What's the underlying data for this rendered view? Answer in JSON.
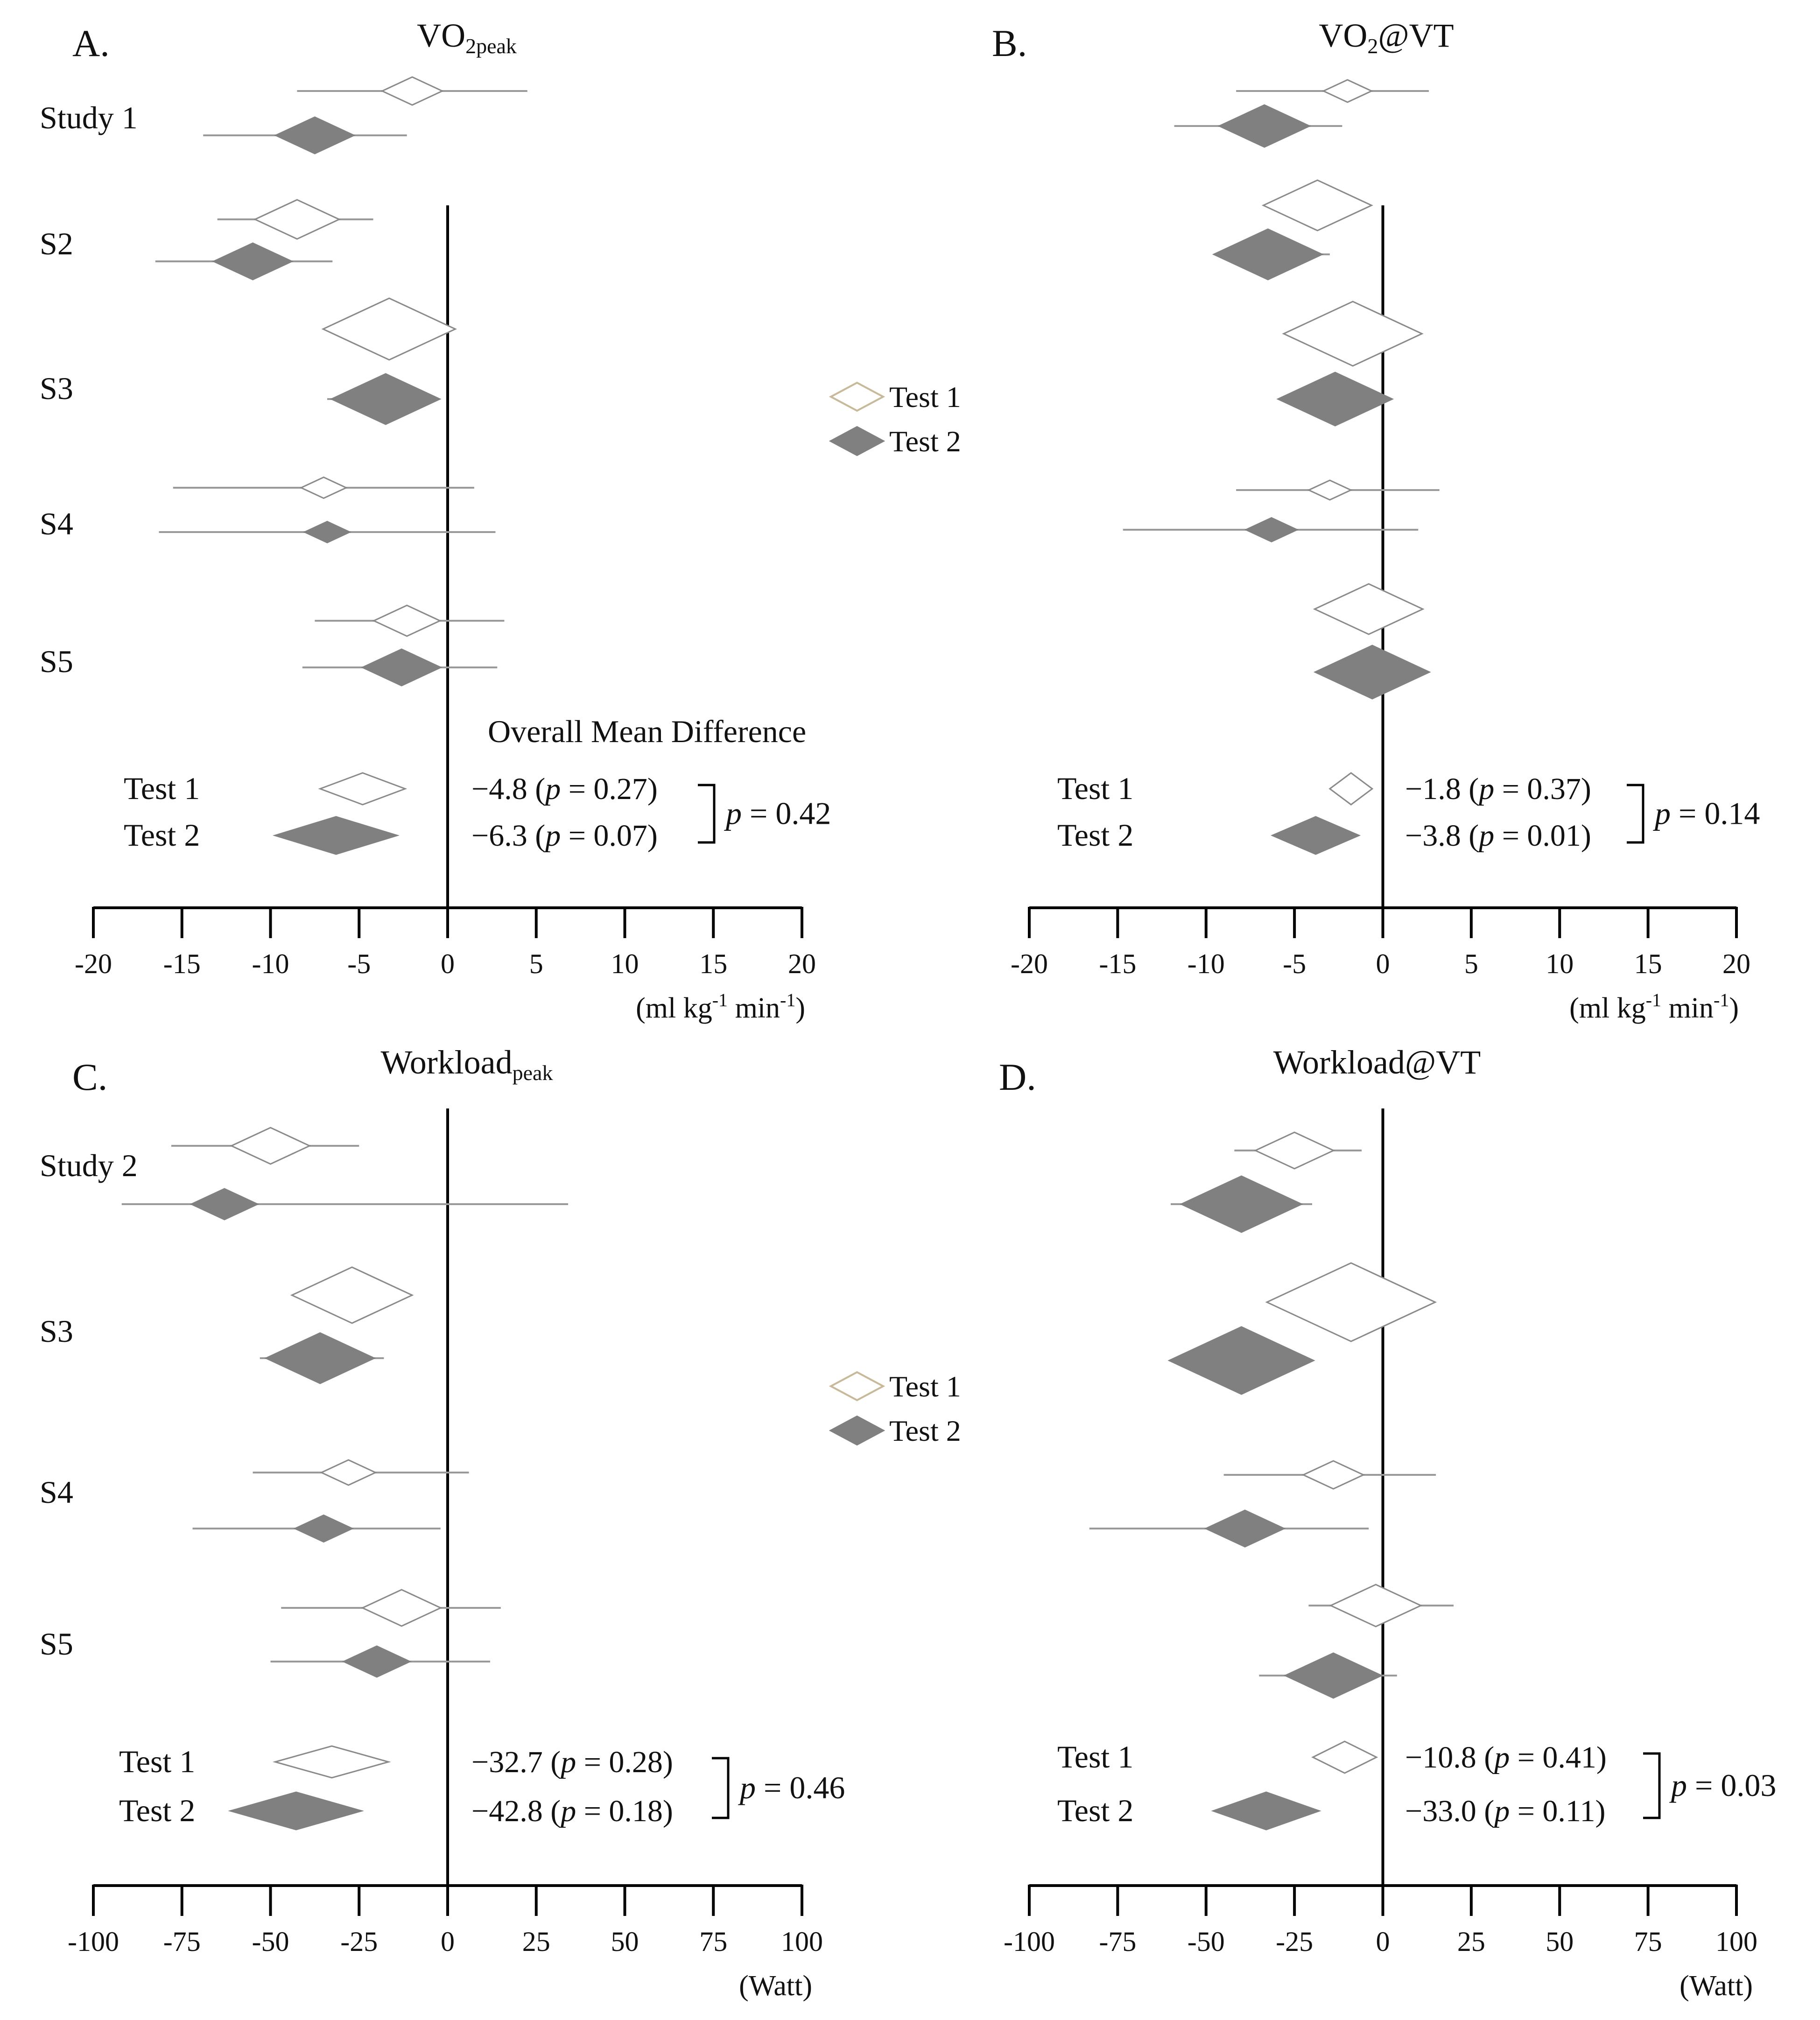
{
  "colors": {
    "axis": "#000000",
    "ci_line": "#9a9a9a",
    "test1_stroke": "#8a8a8a",
    "test2_fill": "#808080",
    "legend_test1_stroke": "#c8b99a",
    "text": "#111111"
  },
  "legends": [
    {
      "panel": 0,
      "items": [
        {
          "label": "Test 1",
          "series": "test1"
        },
        {
          "label": "Test 2",
          "series": "test2"
        }
      ]
    },
    {
      "panel": 2,
      "items": [
        {
          "label": "Test 1",
          "series": "test1"
        },
        {
          "label": "Test 2",
          "series": "test2"
        }
      ]
    }
  ],
  "chart_data": [
    {
      "type": "forest",
      "panel_label": "A.",
      "title": "VO",
      "title_sub": "2peak",
      "unit": "(ml kg",
      "unit_sup1": "-1",
      "unit_mid": " min",
      "unit_sup2": "-1",
      "unit_end": ")",
      "xlim": [
        -20,
        20
      ],
      "ticks": [
        -20,
        -15,
        -10,
        -5,
        0,
        5,
        10,
        15,
        20
      ],
      "annotation_title": "Overall Mean Difference",
      "row_labels": [
        "Study 1",
        "S2",
        "S3",
        "S4",
        "S5"
      ],
      "studies": [
        {
          "test1": {
            "mean": -2.0,
            "lo": -8.5,
            "hi": 4.5,
            "w": 1.0
          },
          "test2": {
            "mean": -7.5,
            "lo": -13.8,
            "hi": -2.3,
            "w": 1.3
          }
        },
        {
          "test1": {
            "mean": -8.5,
            "lo": -13.0,
            "hi": -4.2,
            "w": 1.4
          },
          "test2": {
            "mean": -11.0,
            "lo": -16.5,
            "hi": -6.5,
            "w": 1.3
          }
        },
        {
          "test1": {
            "mean": -3.3,
            "lo": -7.0,
            "hi": -0.6,
            "w": 2.2
          },
          "test2": {
            "mean": -3.5,
            "lo": -6.8,
            "hi": -1.0,
            "w": 1.8
          }
        },
        {
          "test1": {
            "mean": -7.0,
            "lo": -15.5,
            "hi": 1.5,
            "w": 0.75
          },
          "test2": {
            "mean": -6.8,
            "lo": -16.3,
            "hi": 2.7,
            "w": 0.75
          }
        },
        {
          "test1": {
            "mean": -2.3,
            "lo": -7.5,
            "hi": 3.2,
            "w": 1.1
          },
          "test2": {
            "mean": -2.6,
            "lo": -8.2,
            "hi": 2.8,
            "w": 1.3
          }
        }
      ],
      "overall": [
        {
          "label": "Test 1",
          "mean": -4.8,
          "lo": -7.2,
          "hi": -2.4,
          "text_pre": "−4.8 (",
          "p_char": "p",
          "text_post": " = 0.27)"
        },
        {
          "label": "Test 2",
          "mean": -6.3,
          "lo": -9.5,
          "hi": -2.6,
          "text_pre": "−6.3 (",
          "p_char": "p",
          "text_post": " = 0.07)"
        }
      ],
      "bracket": {
        "p_char": "p",
        "text_post": " = 0.42"
      }
    },
    {
      "type": "forest",
      "panel_label": "B.",
      "title": "VO",
      "title_sub": "2",
      "title_post": "@VT",
      "unit": "(ml kg",
      "unit_sup1": "-1",
      "unit_mid": " min",
      "unit_sup2": "-1",
      "unit_end": ")",
      "xlim": [
        -20,
        20
      ],
      "ticks": [
        -20,
        -15,
        -10,
        -5,
        0,
        5,
        10,
        15,
        20
      ],
      "row_labels": [],
      "studies": [
        {
          "test1": {
            "mean": -2.0,
            "lo": -8.3,
            "hi": 2.6,
            "w": 0.8
          },
          "test2": {
            "mean": -6.7,
            "lo": -11.8,
            "hi": -2.3,
            "w": 1.5
          }
        },
        {
          "test1": {
            "mean": -3.7,
            "lo": -6.3,
            "hi": -1.8,
            "w": 1.8
          },
          "test2": {
            "mean": -6.5,
            "lo": -8.7,
            "hi": -3.0,
            "w": 1.8
          }
        },
        {
          "test1": {
            "mean": -1.7,
            "lo": -4.0,
            "hi": 1.5,
            "w": 2.3
          },
          "test2": {
            "mean": -2.7,
            "lo": -4.6,
            "hi": -0.8,
            "w": 1.9
          }
        },
        {
          "test1": {
            "mean": -3.0,
            "lo": -8.3,
            "hi": 3.2,
            "w": 0.7
          },
          "test2": {
            "mean": -6.3,
            "lo": -14.7,
            "hi": 2.0,
            "w": 0.85
          }
        },
        {
          "test1": {
            "mean": -0.8,
            "lo": -3.3,
            "hi": 1.1,
            "w": 1.8
          },
          "test2": {
            "mean": -0.6,
            "lo": -2.4,
            "hi": 1.3,
            "w": 1.9
          }
        }
      ],
      "overall": [
        {
          "label": "Test 1",
          "mean": -1.8,
          "lo": -3.0,
          "hi": -0.6,
          "text_pre": "−1.8 (",
          "p_char": "p",
          "text_post": " = 0.37)"
        },
        {
          "label": "Test 2",
          "mean": -3.8,
          "lo": -6.3,
          "hi": -1.4,
          "text_pre": "−3.8 (",
          "p_char": "p",
          "text_post": " = 0.01)"
        }
      ],
      "bracket": {
        "p_char": "p",
        "text_post": " = 0.14"
      }
    },
    {
      "type": "forest",
      "panel_label": "C.",
      "title": "Workload",
      "title_sub": "peak",
      "unit": "(Watt)",
      "xlim": [
        -100,
        100
      ],
      "ticks": [
        -100,
        -75,
        -50,
        -25,
        0,
        25,
        50,
        75,
        100
      ],
      "row_labels": [
        "Study 2",
        "S3",
        "S4",
        "S5"
      ],
      "studies": [
        {
          "test1": {
            "mean": -50,
            "lo": -78,
            "hi": -25,
            "w": 1.3
          },
          "test2": {
            "mean": -63,
            "lo": -92,
            "hi": 34,
            "w": 1.1
          }
        },
        {
          "test1": {
            "mean": -27,
            "lo": -40,
            "hi": -10,
            "w": 2.0
          },
          "test2": {
            "mean": -36,
            "lo": -53,
            "hi": -18,
            "w": 1.8
          }
        },
        {
          "test1": {
            "mean": -28,
            "lo": -55,
            "hi": 6,
            "w": 0.9
          },
          "test2": {
            "mean": -35,
            "lo": -72,
            "hi": -2,
            "w": 0.95
          }
        },
        {
          "test1": {
            "mean": -13,
            "lo": -47,
            "hi": 15,
            "w": 1.3
          },
          "test2": {
            "mean": -20,
            "lo": -50,
            "hi": 12,
            "w": 1.1
          }
        },
        {
          "test1": null,
          "test2": null
        }
      ],
      "overall": [
        {
          "label": "Test 1",
          "mean": -32.7,
          "lo": -46,
          "hi": -14,
          "text_pre": "−32.7 (",
          "p_char": "p",
          "text_post": " = 0.28)"
        },
        {
          "label": "Test 2",
          "mean": -42.8,
          "lo": -58,
          "hi": -21,
          "text_pre": "−42.8 (",
          "p_char": "p",
          "text_post": " = 0.18)"
        }
      ],
      "bracket": {
        "p_char": "p",
        "text_post": " = 0.46"
      }
    },
    {
      "type": "forest",
      "panel_label": "D.",
      "title": "Workload@VT",
      "unit": "(Watt)",
      "xlim": [
        -100,
        100
      ],
      "ticks": [
        -100,
        -75,
        -50,
        -25,
        0,
        25,
        50,
        75,
        100
      ],
      "row_labels": [],
      "studies": [
        {
          "test1": {
            "mean": -25,
            "lo": -42,
            "hi": -6,
            "w": 1.3
          },
          "test2": {
            "mean": -40,
            "lo": -60,
            "hi": -20,
            "w": 2.0
          }
        },
        {
          "test1": {
            "mean": -9,
            "lo": -24,
            "hi": 7,
            "w": 2.8
          },
          "test2": {
            "mean": -40,
            "lo": -53,
            "hi": -26,
            "w": 2.4
          }
        },
        {
          "test1": {
            "mean": -14,
            "lo": -45,
            "hi": 15,
            "w": 1.0
          },
          "test2": {
            "mean": -39,
            "lo": -83,
            "hi": -4,
            "w": 1.3
          }
        },
        {
          "test1": {
            "mean": -2,
            "lo": -21,
            "hi": 20,
            "w": 1.5
          },
          "test2": {
            "mean": -14,
            "lo": -35,
            "hi": 4,
            "w": 1.6
          }
        },
        {
          "test1": null,
          "test2": null
        }
      ],
      "overall": [
        {
          "label": "Test 1",
          "mean": -10.8,
          "lo": -20,
          "hi": -2,
          "text_pre": "−10.8 (",
          "p_char": "p",
          "text_post": " = 0.41)"
        },
        {
          "label": "Test 2",
          "mean": -33.0,
          "lo": -50,
          "hi": -20,
          "text_pre": "−33.0 (",
          "p_char": "p",
          "text_post": " = 0.11)"
        }
      ],
      "bracket": {
        "p_char": "p",
        "text_post": " = 0.03"
      }
    }
  ]
}
